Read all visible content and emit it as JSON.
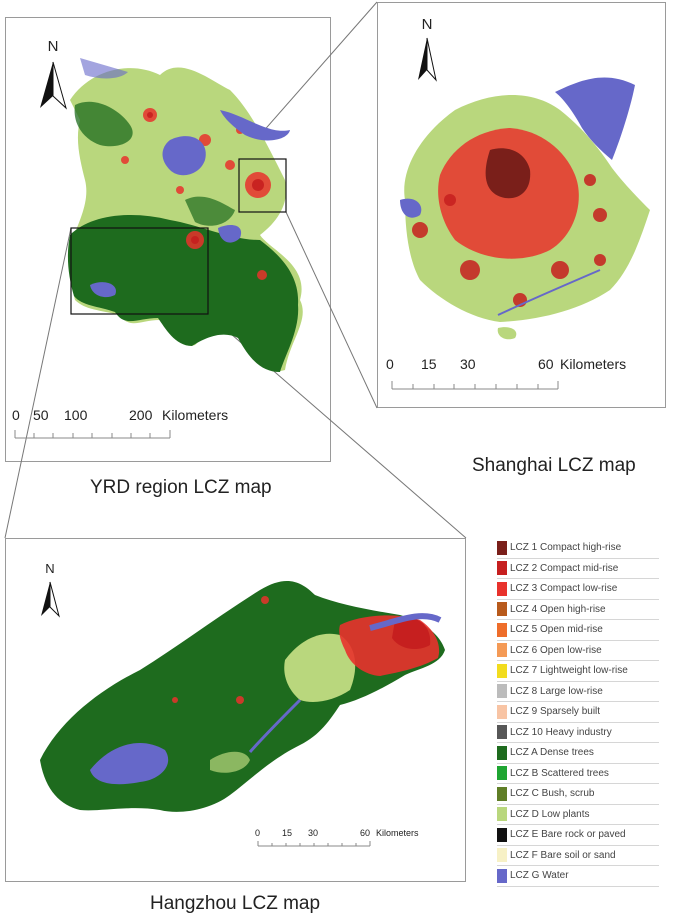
{
  "maps": {
    "yrd": {
      "caption": "YRD region LCZ map",
      "north": "N",
      "scale_text": [
        "0",
        "50",
        "100",
        "200",
        "Kilometers"
      ]
    },
    "shanghai": {
      "caption": "Shanghai LCZ map",
      "north": "N",
      "scale_text": [
        "0",
        "15",
        "30",
        "60",
        "Kilometers"
      ]
    },
    "hangzhou": {
      "caption": "Hangzhou LCZ map",
      "north": "N",
      "scale_text": [
        "0",
        "15",
        "30",
        "60",
        "Kilometers"
      ]
    }
  },
  "legend": [
    {
      "label": "LCZ 1 Compact high-rise",
      "color": "#7a1f1a"
    },
    {
      "label": "LCZ 2 Compact mid-rise",
      "color": "#c61f1f"
    },
    {
      "label": "LCZ 3 Compact low-rise",
      "color": "#e8322c"
    },
    {
      "label": "LCZ 4 Open high-rise",
      "color": "#b85a1c"
    },
    {
      "label": "LCZ 5 Open mid-rise",
      "color": "#ee6d2a"
    },
    {
      "label": "LCZ 6 Open low-rise",
      "color": "#f49a56"
    },
    {
      "label": "LCZ 7 Lightweight low-rise",
      "color": "#f2dc1e"
    },
    {
      "label": "LCZ 8 Large low-rise",
      "color": "#bcbcbc"
    },
    {
      "label": "LCZ 9 Sparsely built",
      "color": "#f8c4a4"
    },
    {
      "label": "LCZ 10 Heavy industry",
      "color": "#575757"
    },
    {
      "label": "LCZ A Dense trees",
      "color": "#1e6b1e"
    },
    {
      "label": "LCZ B Scattered trees",
      "color": "#1fa532"
    },
    {
      "label": "LCZ C Bush, scrub",
      "color": "#5f7e26"
    },
    {
      "label": "LCZ D Low plants",
      "color": "#b9d77d"
    },
    {
      "label": "LCZ E Bare rock or paved",
      "color": "#111111"
    },
    {
      "label": "LCZ F Bare soil or sand",
      "color": "#f7f1c6"
    },
    {
      "label": "LCZ G Water",
      "color": "#6668c9"
    }
  ]
}
